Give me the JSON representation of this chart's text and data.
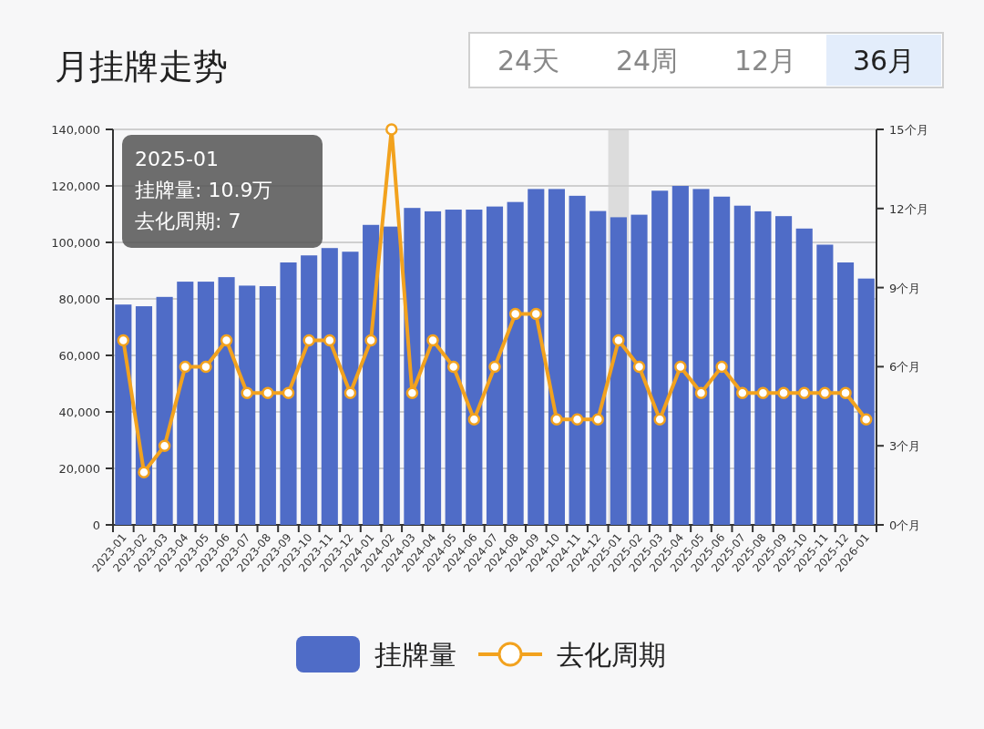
{
  "chart_data": {
    "type": "bar",
    "title": "月挂牌走势",
    "categories": [
      "2023-01",
      "2023-02",
      "2023-03",
      "2023-04",
      "2023-05",
      "2023-06",
      "2023-07",
      "2023-08",
      "2023-09",
      "2023-10",
      "2023-11",
      "2023-12",
      "2024-01",
      "2024-02",
      "2024-03",
      "2024-04",
      "2024-05",
      "2024-06",
      "2024-07",
      "2024-08",
      "2024-09",
      "2024-10",
      "2024-11",
      "2024-12",
      "2025-01",
      "2025-02",
      "2025-03",
      "2025-04",
      "2025-05",
      "2025-06",
      "2025-07",
      "2025-08",
      "2025-09",
      "2025-10",
      "2025-11",
      "2025-12",
      "2026-01"
    ],
    "series": [
      {
        "name": "挂牌量",
        "color": "#4f6cc7",
        "values": [
          78000,
          77400,
          80700,
          86100,
          86100,
          87700,
          84700,
          84500,
          92900,
          95400,
          98000,
          96700,
          106200,
          105600,
          112200,
          111000,
          111600,
          111600,
          112700,
          114300,
          118900,
          118900,
          116500,
          111100,
          108900,
          109800,
          118300,
          120000,
          118900,
          116200,
          113000,
          111000,
          109300,
          104900,
          99200,
          92900,
          87200
        ]
      },
      {
        "name": "去化周期",
        "type": "line",
        "axis": "y2",
        "color": "#f2a21e",
        "marker": "circle",
        "values": [
          7,
          2,
          3,
          6,
          6,
          7,
          5,
          5,
          5,
          7,
          7,
          5,
          7,
          15,
          5,
          7,
          6,
          4,
          6,
          8,
          8,
          4,
          4,
          4,
          7,
          6,
          4,
          6,
          5,
          6,
          5,
          5,
          5,
          5,
          5,
          5,
          4
        ]
      }
    ],
    "ylim": [
      0,
      140000
    ],
    "yticks": [
      0,
      {
        "value": 20000,
        "label": "20,000"
      },
      {
        "value": 40000,
        "label": "40,000"
      },
      {
        "value": 60000,
        "label": "60,000"
      },
      {
        "value": 80000,
        "label": "80,000"
      },
      {
        "value": 100000,
        "label": "100,000"
      },
      {
        "value": 120000,
        "label": "120,000"
      },
      {
        "value": 140000,
        "label": "140,000"
      }
    ],
    "y2lim": [
      0,
      15
    ],
    "y2ticks": [
      {
        "value": 0,
        "label": "0个月"
      },
      {
        "value": 3,
        "label": "3个月"
      },
      {
        "value": 6,
        "label": "6个月"
      },
      {
        "value": 9,
        "label": "9个月"
      },
      {
        "value": 12,
        "label": "12个月"
      },
      {
        "value": 15,
        "label": "15个月"
      }
    ],
    "bands": [
      {
        "axis": "x",
        "from": "2025-01",
        "to": "2025-01",
        "color": "#dcdcdc"
      }
    ],
    "grid": "y",
    "legend": "bottom",
    "annotations": [
      "24天",
      "24周",
      "12月",
      "36月",
      "2025-01",
      "挂牌量: 10.9万",
      "去化周期: 7"
    ]
  }
}
